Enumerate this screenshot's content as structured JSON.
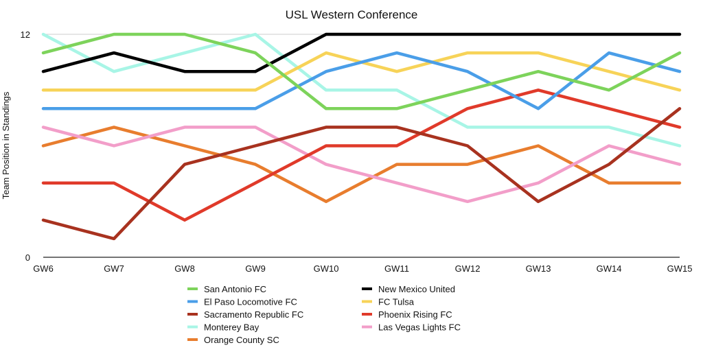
{
  "chart_data": {
    "type": "line",
    "title": "USL Western Conference",
    "xlabel": "",
    "ylabel": "Team Position in Standings",
    "x": [
      "GW6",
      "GW7",
      "GW8",
      "GW9",
      "GW10",
      "GW11",
      "GW12",
      "GW13",
      "GW14",
      "GW15"
    ],
    "ylim": [
      0,
      12
    ],
    "yticks": [
      "0",
      "12"
    ],
    "grid": "top gridline at 12 only",
    "legend_position": "bottom, two columns",
    "series": [
      {
        "name": "San Antonio FC",
        "color": "#7dd35b",
        "values": [
          11,
          12,
          12,
          11,
          8,
          8,
          9,
          10,
          9,
          11
        ]
      },
      {
        "name": "New Mexico United",
        "color": "#000000",
        "values": [
          10,
          11,
          10,
          10,
          12,
          12,
          12,
          12,
          12,
          12
        ]
      },
      {
        "name": "El Paso Locomotive FC",
        "color": "#4a9ee8",
        "values": [
          8,
          8,
          8,
          8,
          10,
          11,
          10,
          8,
          11,
          10
        ]
      },
      {
        "name": "FC Tulsa",
        "color": "#f7d358",
        "values": [
          9,
          9,
          9,
          9,
          11,
          10,
          11,
          11,
          10,
          9
        ]
      },
      {
        "name": "Sacramento Republic FC",
        "color": "#a8321f",
        "values": [
          2,
          1,
          5,
          6,
          7,
          7,
          6,
          3,
          5,
          8
        ]
      },
      {
        "name": "Phoenix Rising FC",
        "color": "#e03a2a",
        "values": [
          4,
          4,
          2,
          4,
          6,
          6,
          8,
          9,
          8,
          7
        ]
      },
      {
        "name": "Monterey Bay",
        "color": "#a8f5e6",
        "values": [
          12,
          10,
          11,
          12,
          9,
          9,
          7,
          7,
          7,
          6
        ]
      },
      {
        "name": "Las Vegas Lights FC",
        "color": "#f29ec9",
        "values": [
          7,
          6,
          7,
          7,
          5,
          4,
          3,
          4,
          6,
          5
        ]
      },
      {
        "name": "Orange County SC",
        "color": "#e87d2e",
        "values": [
          6,
          7,
          6,
          5,
          3,
          5,
          5,
          6,
          4,
          4
        ]
      }
    ]
  }
}
